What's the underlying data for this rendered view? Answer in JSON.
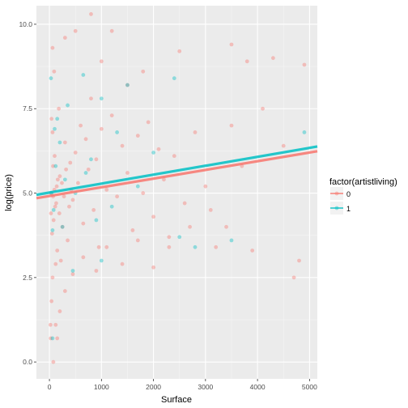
{
  "chart_data": {
    "type": "scatter",
    "xlabel": "Surface",
    "ylabel": "log(price)",
    "xlim": [
      -250,
      5150
    ],
    "ylim": [
      -0.5,
      10.55
    ],
    "x_ticks": [
      0,
      1000,
      2000,
      3000,
      4000,
      5000
    ],
    "x_tick_labels": [
      "0",
      "1000",
      "2000",
      "3000",
      "4000",
      "5000"
    ],
    "y_ticks": [
      0,
      2.5,
      5,
      7.5,
      10
    ],
    "y_tick_labels": [
      "0.0",
      "2.5",
      "5.0",
      "7.5",
      "10.0"
    ],
    "grid": true,
    "legend": {
      "title": "factor(artistliving)",
      "position": "right",
      "entries": [
        {
          "label": "0",
          "color": "#F8766D"
        },
        {
          "label": "1",
          "color": "#00BFC4"
        }
      ]
    },
    "series": [
      {
        "name": "0",
        "color": "#F8766D",
        "points": [
          [
            20,
            1.1
          ],
          [
            60,
            2.5
          ],
          [
            80,
            4.2
          ],
          [
            30,
            5.0
          ],
          [
            100,
            6.1
          ],
          [
            150,
            3.3
          ],
          [
            40,
            7.2
          ],
          [
            90,
            8.6
          ],
          [
            200,
            5.5
          ],
          [
            250,
            4.0
          ],
          [
            300,
            6.5
          ],
          [
            120,
            2.9
          ],
          [
            50,
            3.8
          ],
          [
            70,
            5.8
          ],
          [
            110,
            4.6
          ],
          [
            180,
            7.5
          ],
          [
            220,
            3.0
          ],
          [
            60,
            6.8
          ],
          [
            140,
            5.2
          ],
          [
            30,
            4.4
          ],
          [
            400,
            5.9
          ],
          [
            350,
            3.6
          ],
          [
            500,
            6.2
          ],
          [
            450,
            4.8
          ],
          [
            600,
            7.0
          ],
          [
            550,
            5.3
          ],
          [
            700,
            6.6
          ],
          [
            650,
            4.1
          ],
          [
            800,
            7.8
          ],
          [
            750,
            5.7
          ],
          [
            900,
            6.0
          ],
          [
            850,
            4.5
          ],
          [
            1000,
            6.9
          ],
          [
            950,
            3.4
          ],
          [
            1100,
            5.1
          ],
          [
            1200,
            7.3
          ],
          [
            1300,
            4.9
          ],
          [
            1400,
            6.4
          ],
          [
            1500,
            5.6
          ],
          [
            1600,
            3.9
          ],
          [
            1700,
            6.7
          ],
          [
            1800,
            5.0
          ],
          [
            1900,
            7.1
          ],
          [
            2000,
            4.3
          ],
          [
            2100,
            6.3
          ],
          [
            2200,
            5.4
          ],
          [
            2300,
            3.7
          ],
          [
            2400,
            6.1
          ],
          [
            2600,
            4.7
          ],
          [
            2800,
            6.8
          ],
          [
            3000,
            5.2
          ],
          [
            3200,
            3.4
          ],
          [
            3400,
            4.0
          ],
          [
            3500,
            7.0
          ],
          [
            3700,
            5.8
          ],
          [
            3900,
            3.3
          ],
          [
            4100,
            7.5
          ],
          [
            4300,
            9.0
          ],
          [
            4500,
            6.4
          ],
          [
            4700,
            2.5
          ],
          [
            4800,
            3.0
          ],
          [
            4900,
            8.8
          ],
          [
            25,
            0.7
          ],
          [
            75,
            0.0
          ],
          [
            150,
            0.7
          ],
          [
            60,
            9.3
          ],
          [
            300,
            9.6
          ],
          [
            500,
            9.8
          ],
          [
            800,
            10.3
          ],
          [
            1200,
            9.8
          ],
          [
            1500,
            8.2
          ],
          [
            1000,
            8.9
          ],
          [
            1800,
            8.6
          ],
          [
            2500,
            9.2
          ],
          [
            3500,
            9.4
          ],
          [
            3800,
            8.9
          ],
          [
            40,
            1.8
          ],
          [
            120,
            1.1
          ],
          [
            200,
            1.5
          ],
          [
            300,
            2.1
          ],
          [
            450,
            2.6
          ],
          [
            650,
            3.1
          ],
          [
            900,
            2.7
          ],
          [
            1100,
            3.4
          ],
          [
            1400,
            2.9
          ],
          [
            1700,
            3.6
          ],
          [
            2000,
            2.8
          ],
          [
            2300,
            3.4
          ],
          [
            2700,
            4.0
          ],
          [
            3100,
            4.5
          ],
          [
            70,
            4.9
          ],
          [
            95,
            5.1
          ],
          [
            130,
            4.7
          ],
          [
            160,
            5.4
          ],
          [
            190,
            4.4
          ],
          [
            240,
            5.3
          ],
          [
            280,
            4.9
          ],
          [
            320,
            5.7
          ],
          [
            380,
            4.6
          ],
          [
            420,
            5.1
          ]
        ]
      },
      {
        "name": "1",
        "color": "#00BFC4",
        "points": [
          [
            40,
            5.0
          ],
          [
            80,
            4.5
          ],
          [
            120,
            5.8
          ],
          [
            200,
            6.5
          ],
          [
            60,
            3.9
          ],
          [
            150,
            7.2
          ],
          [
            300,
            5.4
          ],
          [
            250,
            4.0
          ],
          [
            100,
            6.9
          ],
          [
            350,
            7.6
          ],
          [
            500,
            5.0
          ],
          [
            650,
            8.5
          ],
          [
            800,
            6.0
          ],
          [
            1000,
            7.8
          ],
          [
            1200,
            4.6
          ],
          [
            1500,
            8.2
          ],
          [
            1700,
            5.2
          ],
          [
            2000,
            6.2
          ],
          [
            2400,
            8.4
          ],
          [
            2800,
            3.4
          ],
          [
            3500,
            3.6
          ],
          [
            4900,
            6.8
          ],
          [
            1000,
            3.0
          ],
          [
            2500,
            3.7
          ],
          [
            450,
            2.7
          ],
          [
            60,
            0.7
          ],
          [
            30,
            8.4
          ],
          [
            700,
            5.6
          ],
          [
            900,
            4.2
          ],
          [
            1300,
            6.8
          ]
        ]
      }
    ],
    "fit_lines": [
      {
        "series": "0",
        "x": [
          -250,
          5150
        ],
        "y": [
          4.85,
          6.24
        ],
        "color": "#F8766D"
      },
      {
        "series": "1",
        "x": [
          -250,
          5150
        ],
        "y": [
          4.95,
          6.38
        ],
        "color": "#00BFC4"
      }
    ]
  }
}
